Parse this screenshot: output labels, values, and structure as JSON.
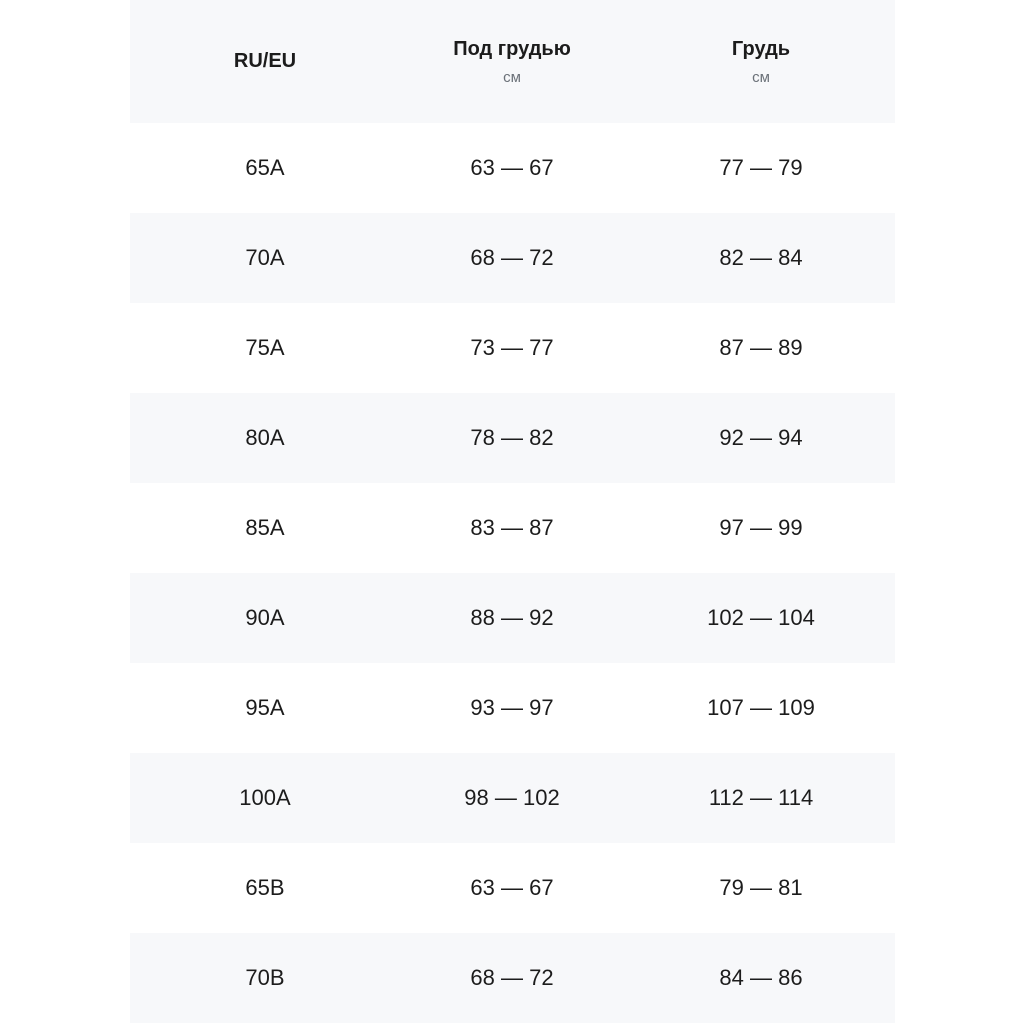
{
  "table": {
    "header": [
      {
        "title": "RU/EU"
      },
      {
        "title": "Под грудью",
        "unit": "см"
      },
      {
        "title": "Грудь",
        "unit": "см"
      }
    ],
    "rows": [
      [
        "65A",
        "63 — 67",
        "77 — 79"
      ],
      [
        "70A",
        "68 — 72",
        "82 — 84"
      ],
      [
        "75A",
        "73 — 77",
        "87 — 89"
      ],
      [
        "80A",
        "78 — 82",
        "92 — 94"
      ],
      [
        "85A",
        "83 — 87",
        "97 — 99"
      ],
      [
        "90A",
        "88 — 92",
        "102 — 104"
      ],
      [
        "95A",
        "93 — 97",
        "107 — 109"
      ],
      [
        "100A",
        "98 — 102",
        "112 — 114"
      ],
      [
        "65B",
        "63 — 67",
        "79 — 81"
      ],
      [
        "70B",
        "68 — 72",
        "84 — 86"
      ]
    ]
  }
}
